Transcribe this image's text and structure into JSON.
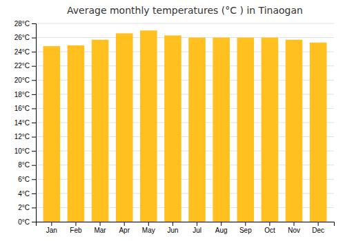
{
  "chart_data": {
    "type": "bar",
    "title": "Average monthly temperatures (°C ) in Tinaogan",
    "categories": [
      "Jan",
      "Feb",
      "Mar",
      "Apr",
      "May",
      "Jun",
      "Jul",
      "Aug",
      "Sep",
      "Oct",
      "Nov",
      "Dec"
    ],
    "values": [
      24.8,
      24.9,
      25.7,
      26.6,
      27.0,
      26.3,
      26.0,
      26.0,
      26.0,
      26.0,
      25.7,
      25.3
    ],
    "color": "#FFC020",
    "ylim": [
      0,
      28
    ],
    "yticks": [
      {
        "value": 0,
        "label": "0°C"
      },
      {
        "value": 2,
        "label": "2°C"
      },
      {
        "value": 4,
        "label": "4°C"
      },
      {
        "value": 6,
        "label": "6°C"
      },
      {
        "value": 8,
        "label": "8°C"
      },
      {
        "value": 10,
        "label": "10°C"
      },
      {
        "value": 12,
        "label": "12°C"
      },
      {
        "value": 14,
        "label": "14°C"
      },
      {
        "value": 16,
        "label": "16°C"
      },
      {
        "value": 18,
        "label": "18°C"
      },
      {
        "value": 20,
        "label": "20°C"
      },
      {
        "value": 22,
        "label": "22°C"
      },
      {
        "value": 24,
        "label": "24°C"
      },
      {
        "value": 26,
        "label": "26°C"
      },
      {
        "value": 28,
        "label": "28°C"
      }
    ],
    "grid": true
  }
}
